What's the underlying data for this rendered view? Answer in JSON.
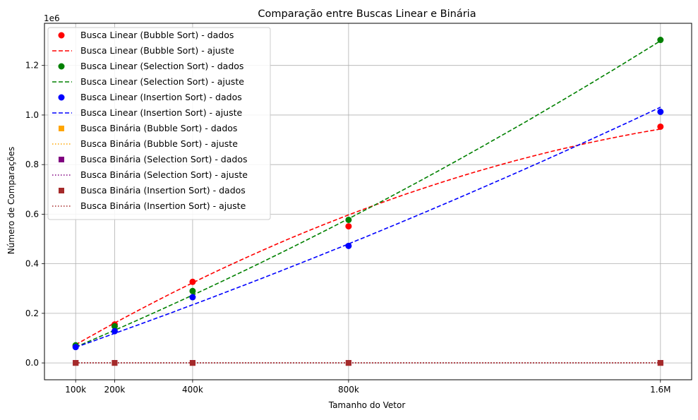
{
  "chart_data": {
    "type": "line",
    "title": "Comparação entre Buscas Linear e Binária",
    "xlabel": "Tamanho do Vetor",
    "ylabel": "Número de Comparações",
    "y_offset_label": "1e6",
    "x_ticks": [
      {
        "value": 100000,
        "label": "100k"
      },
      {
        "value": 200000,
        "label": "200k"
      },
      {
        "value": 400000,
        "label": "400k"
      },
      {
        "value": 800000,
        "label": "800k"
      },
      {
        "value": 1600000,
        "label": "1.6M"
      }
    ],
    "y_ticks": [
      {
        "value": 0.0,
        "label": "0.0"
      },
      {
        "value": 0.2,
        "label": "0.2"
      },
      {
        "value": 0.4,
        "label": "0.4"
      },
      {
        "value": 0.6,
        "label": "0.6"
      },
      {
        "value": 0.8,
        "label": "0.8"
      },
      {
        "value": 1.0,
        "label": "1.0"
      },
      {
        "value": 1.2,
        "label": "1.2"
      }
    ],
    "xlim": [
      20000,
      1680000
    ],
    "ylim": [
      -0.068,
      1.37
    ],
    "grid": true,
    "legend_position": "top-left",
    "x": [
      100000,
      200000,
      400000,
      800000,
      1600000
    ],
    "series": [
      {
        "name": "Busca Linear (Bubble Sort) - dados",
        "kind": "data",
        "marker": "circle",
        "color": "#ff0000",
        "values": [
          0.068,
          0.155,
          0.327,
          0.551,
          0.953
        ]
      },
      {
        "name": "Busca Linear (Bubble Sort) - ajuste",
        "kind": "fit",
        "dash": "dashed",
        "color": "#ff0000",
        "fit": [
          -2.1e-13,
          9.37e-07,
          -0.0181
        ]
      },
      {
        "name": "Busca Linear (Selection Sort) - dados",
        "kind": "data",
        "marker": "circle",
        "color": "#008000",
        "values": [
          0.071,
          0.148,
          0.29,
          0.577,
          1.303
        ]
      },
      {
        "name": "Busca Linear (Selection Sort) - ajuste",
        "kind": "fit",
        "dash": "dashed",
        "color": "#008000",
        "fit": [
          1.05e-13,
          6.45e-07,
          -0.0014
        ]
      },
      {
        "name": "Busca Linear (Insertion Sort) - dados",
        "kind": "data",
        "marker": "circle",
        "color": "#0000ff",
        "values": [
          0.064,
          0.128,
          0.265,
          0.472,
          1.013
        ]
      },
      {
        "name": "Busca Linear (Insertion Sort) - ajuste",
        "kind": "fit",
        "dash": "dashed",
        "color": "#0000ff",
        "fit": [
          6.2e-14,
          5.4e-07,
          0.0086
        ]
      },
      {
        "name": "Busca Binária (Bubble Sort) - dados",
        "kind": "data",
        "marker": "square",
        "color": "#ffa500",
        "values": [
          1.7e-05,
          1.8e-05,
          1.9e-05,
          2e-05,
          2.1e-05
        ]
      },
      {
        "name": "Busca Binária (Bubble Sort) - ajuste",
        "kind": "fit",
        "dash": "dotted",
        "color": "#ffa500",
        "fit": [
          0,
          0,
          2e-05
        ]
      },
      {
        "name": "Busca Binária (Selection Sort) - dados",
        "kind": "data",
        "marker": "square",
        "color": "#800080",
        "values": [
          1.7e-05,
          1.8e-05,
          1.9e-05,
          2e-05,
          2.1e-05
        ]
      },
      {
        "name": "Busca Binária (Selection Sort) - ajuste",
        "kind": "fit",
        "dash": "dotted",
        "color": "#800080",
        "fit": [
          0,
          0,
          2e-05
        ]
      },
      {
        "name": "Busca Binária (Insertion Sort) - dados",
        "kind": "data",
        "marker": "square",
        "color": "#a52a2a",
        "values": [
          1.7e-05,
          1.8e-05,
          1.9e-05,
          2e-05,
          2.1e-05
        ]
      },
      {
        "name": "Busca Binária (Insertion Sort) - ajuste",
        "kind": "fit",
        "dash": "dotted",
        "color": "#a52a2a",
        "fit": [
          0,
          0,
          2e-05
        ]
      }
    ]
  }
}
